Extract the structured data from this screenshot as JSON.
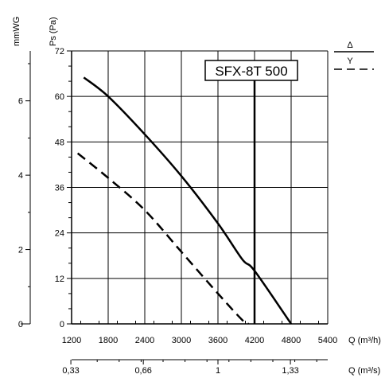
{
  "chart_data": {
    "type": "line",
    "model_label": "SFX-8T 500",
    "ylabel_pa": "Ps (Pa)",
    "ylabel_mmwg": "mmWG",
    "xlabel_m3h": "Q (m³/h)",
    "xlabel_m3s": "Q (m³/s)",
    "x_range_m3h": [
      1200,
      5400
    ],
    "y_range_pa": [
      0,
      72
    ],
    "x_ticks_m3h": [
      "1200",
      "1800",
      "2400",
      "3000",
      "3600",
      "4200",
      "4800",
      "5400"
    ],
    "y_ticks_pa": [
      "0",
      "12",
      "24",
      "36",
      "48",
      "60",
      "72"
    ],
    "mmwg_ticks": [
      "0",
      "2",
      "4",
      "6"
    ],
    "m3s_ticks": [
      "0,33",
      "0,66",
      "1",
      "1,33"
    ],
    "legend": {
      "position": "top-right",
      "delta_label": "Δ",
      "y_label": "Y"
    },
    "grid": true,
    "series": [
      {
        "name": "Δ",
        "style": "solid",
        "points": [
          [
            1400,
            65
          ],
          [
            1800,
            60
          ],
          [
            2400,
            50
          ],
          [
            3000,
            39
          ],
          [
            3600,
            26.5
          ],
          [
            4000,
            17
          ],
          [
            4200,
            14
          ],
          [
            4800,
            0
          ]
        ]
      },
      {
        "name": "Y",
        "style": "dashed",
        "points": [
          [
            1300,
            45
          ],
          [
            1800,
            38.5
          ],
          [
            2400,
            30
          ],
          [
            3000,
            19
          ],
          [
            3600,
            8
          ],
          [
            4000,
            1
          ],
          [
            4100,
            0
          ]
        ]
      }
    ]
  }
}
